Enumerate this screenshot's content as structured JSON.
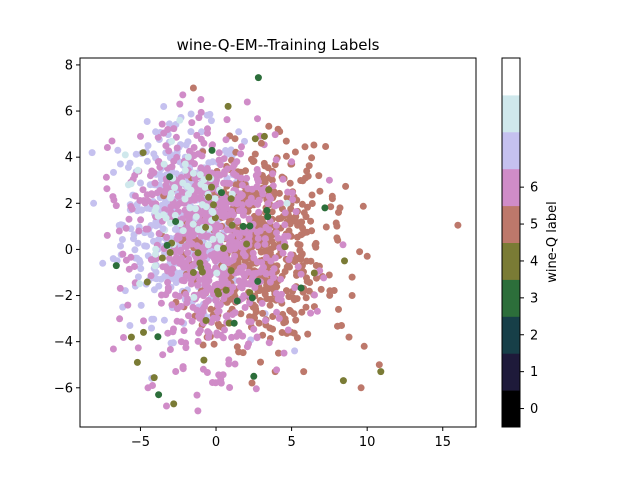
{
  "chart_data": {
    "type": "scatter",
    "title": "wine-Q-EM--Training Labels",
    "xlabel": "",
    "ylabel": "",
    "xlim": [
      -9.0,
      17.2
    ],
    "ylim": [
      -7.7,
      8.3
    ],
    "xticks": [
      -5,
      0,
      5,
      10,
      15
    ],
    "yticks": [
      -6,
      -4,
      -2,
      0,
      2,
      4,
      6,
      8
    ],
    "grid": false,
    "colorbar": {
      "label": "wine-Q label",
      "ticks": [
        0,
        1,
        2,
        3,
        4,
        5,
        6
      ],
      "colors": [
        "#000000",
        "#1e1a3a",
        "#173f48",
        "#2c6e3a",
        "#7a7b35",
        "#bd786b",
        "#d08cc8",
        "#c5c1ef",
        "#cfe8ec",
        "#ffffff"
      ]
    },
    "class_colors": {
      "3": "#2c6e3a",
      "4": "#7a7b35",
      "5": "#bd786b",
      "6": "#d08cc8",
      "7": "#c5c1ef",
      "8": "#cfe8ec"
    },
    "series_note": "",
    "points": [
      [
        -8.2,
        4.2,
        7
      ],
      [
        -8.1,
        2.0,
        7
      ],
      [
        16.0,
        1.05,
        5
      ],
      [
        2.8,
        7.45,
        3
      ],
      [
        -1.5,
        7.0,
        5
      ],
      [
        -2.2,
        6.7,
        6
      ],
      [
        -1.0,
        6.5,
        6
      ],
      [
        0.8,
        6.2,
        4
      ],
      [
        -2.4,
        6.3,
        6
      ],
      [
        -2.4,
        5.6,
        8
      ],
      [
        -1.6,
        5.5,
        6
      ],
      [
        3.2,
        4.9,
        4
      ],
      [
        -3.2,
        5.2,
        6
      ],
      [
        -4.0,
        5.1,
        7
      ],
      [
        -5.0,
        4.9,
        6
      ],
      [
        -4.5,
        4.5,
        7
      ],
      [
        -6.5,
        4.3,
        7
      ],
      [
        -6.0,
        4.1,
        8
      ],
      [
        -0.8,
        4.6,
        6
      ],
      [
        1.5,
        5.1,
        7
      ],
      [
        6.0,
        3.4,
        5
      ],
      [
        6.8,
        3.2,
        5
      ],
      [
        5.0,
        3.8,
        6
      ],
      [
        7.5,
        3.0,
        6
      ],
      [
        7.7,
        2.2,
        5
      ],
      [
        8.2,
        1.8,
        5
      ],
      [
        7.2,
        1.8,
        3
      ],
      [
        8.0,
        0.5,
        5
      ],
      [
        8.4,
        0.2,
        6
      ],
      [
        10.0,
        -0.3,
        5
      ],
      [
        9.5,
        -0.1,
        5
      ],
      [
        8.5,
        -0.5,
        4
      ],
      [
        9.0,
        -1.2,
        5
      ],
      [
        9.0,
        -2.0,
        5
      ],
      [
        8.1,
        -2.6,
        5
      ],
      [
        8.3,
        -3.3,
        5
      ],
      [
        8.8,
        -3.8,
        5
      ],
      [
        9.8,
        -4.2,
        5
      ],
      [
        10.8,
        -5.0,
        5
      ],
      [
        10.9,
        -5.3,
        4
      ],
      [
        9.6,
        -6.0,
        5
      ],
      [
        5.8,
        -5.3,
        5
      ],
      [
        2.5,
        -5.5,
        3
      ],
      [
        -1.2,
        -7.0,
        6
      ],
      [
        -2.8,
        -6.7,
        4
      ],
      [
        -3.8,
        -6.3,
        3
      ],
      [
        -4.5,
        -6.0,
        6
      ],
      [
        -4.2,
        -5.9,
        6
      ],
      [
        -5.2,
        -4.9,
        4
      ],
      [
        -5.6,
        -3.8,
        4
      ],
      [
        -5.7,
        -3.3,
        7
      ],
      [
        -4.8,
        -3.6,
        4
      ],
      [
        -6.6,
        -0.7,
        3
      ],
      [
        -6.8,
        -0.4,
        7
      ],
      [
        -6.4,
        0.8,
        6
      ],
      [
        -6.6,
        1.9,
        6
      ],
      [
        -5.8,
        2.8,
        8
      ],
      [
        -1.5,
        3.3,
        8
      ],
      [
        0.2,
        0.6,
        8
      ],
      [
        -0.2,
        1.6,
        8
      ],
      [
        1.0,
        2.2,
        4
      ],
      [
        -1.5,
        -1.0,
        4
      ],
      [
        2.4,
        -2.1,
        3
      ],
      [
        5.2,
        -4.4,
        7
      ],
      [
        1.2,
        -3.2,
        3
      ],
      [
        -0.8,
        -4.8,
        4
      ],
      [
        -2.3,
        -4.0,
        6
      ],
      [
        1.8,
        1.0,
        3
      ],
      [
        -3.5,
        0.9,
        7
      ],
      [
        4.7,
        2.0,
        8
      ],
      [
        3.0,
        4.6,
        5
      ],
      [
        2.6,
        4.8,
        4
      ]
    ]
  }
}
